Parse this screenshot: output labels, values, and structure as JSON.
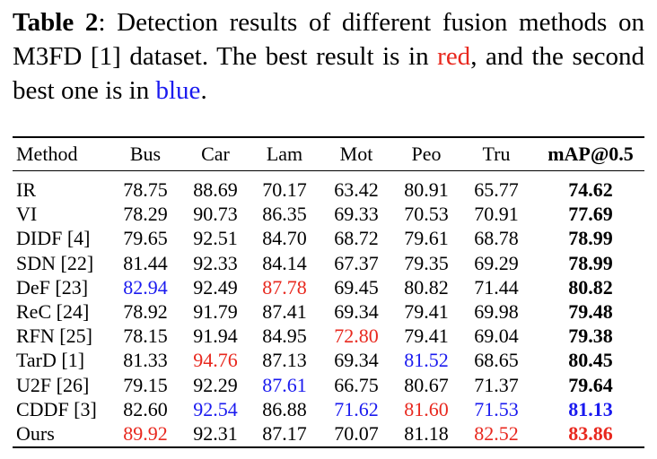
{
  "caption": {
    "label": "Table 2",
    "part1": ":  Detection results of different fusion methods on M3FD [1] dataset.  The best result is in ",
    "red_word": "red",
    "part2": ", and the second best one is in ",
    "blue_word": "blue",
    "part3": "."
  },
  "colors": {
    "best": "#e8281e",
    "second": "#1a1aef"
  },
  "table": {
    "headers": [
      "Method",
      "Bus",
      "Car",
      "Lam",
      "Mot",
      "Peo",
      "Tru",
      "mAP@0.5"
    ],
    "rows": [
      {
        "method": "IR",
        "values": [
          "78.75",
          "88.69",
          "70.17",
          "63.42",
          "80.91",
          "65.77",
          "74.62"
        ],
        "highlight": [
          "",
          "",
          "",
          "",
          "",
          "",
          ""
        ]
      },
      {
        "method": "VI",
        "values": [
          "78.29",
          "90.73",
          "86.35",
          "69.33",
          "70.53",
          "70.91",
          "77.69"
        ],
        "highlight": [
          "",
          "",
          "",
          "",
          "",
          "",
          ""
        ]
      },
      {
        "method": "DIDF [4]",
        "values": [
          "79.65",
          "92.51",
          "84.70",
          "68.72",
          "79.61",
          "68.78",
          "78.99"
        ],
        "highlight": [
          "",
          "",
          "",
          "",
          "",
          "",
          ""
        ]
      },
      {
        "method": "SDN [22]",
        "values": [
          "81.44",
          "92.33",
          "84.14",
          "67.37",
          "79.35",
          "69.29",
          "78.99"
        ],
        "highlight": [
          "",
          "",
          "",
          "",
          "",
          "",
          ""
        ]
      },
      {
        "method": "DeF [23]",
        "values": [
          "82.94",
          "92.49",
          "87.78",
          "69.45",
          "80.82",
          "71.44",
          "80.82"
        ],
        "highlight": [
          "blue",
          "",
          "red",
          "",
          "",
          "",
          ""
        ]
      },
      {
        "method": "ReC [24]",
        "values": [
          "78.92",
          "91.79",
          "87.41",
          "69.34",
          "79.41",
          "69.98",
          "79.48"
        ],
        "highlight": [
          "",
          "",
          "",
          "",
          "",
          "",
          ""
        ]
      },
      {
        "method": "RFN [25]",
        "values": [
          "78.15",
          "91.94",
          "84.95",
          "72.80",
          "79.41",
          "69.04",
          "79.38"
        ],
        "highlight": [
          "",
          "",
          "",
          "red",
          "",
          "",
          ""
        ]
      },
      {
        "method": "TarD [1]",
        "values": [
          "81.33",
          "94.76",
          "87.13",
          "69.34",
          "81.52",
          "68.65",
          "80.45"
        ],
        "highlight": [
          "",
          "red",
          "",
          "",
          "blue",
          "",
          ""
        ]
      },
      {
        "method": "U2F [26]",
        "values": [
          "79.15",
          "92.29",
          "87.61",
          "66.75",
          "80.67",
          "71.37",
          "79.64"
        ],
        "highlight": [
          "",
          "",
          "blue",
          "",
          "",
          "",
          ""
        ]
      },
      {
        "method": "CDDF [3]",
        "values": [
          "82.60",
          "92.54",
          "86.88",
          "71.62",
          "81.60",
          "71.53",
          "81.13"
        ],
        "highlight": [
          "",
          "blue",
          "",
          "blue",
          "red",
          "blue",
          "blue"
        ]
      },
      {
        "method": "Ours",
        "values": [
          "89.92",
          "92.31",
          "87.17",
          "70.07",
          "81.18",
          "82.52",
          "83.86"
        ],
        "highlight": [
          "red",
          "",
          "",
          "",
          "",
          "red",
          "red"
        ]
      }
    ]
  }
}
